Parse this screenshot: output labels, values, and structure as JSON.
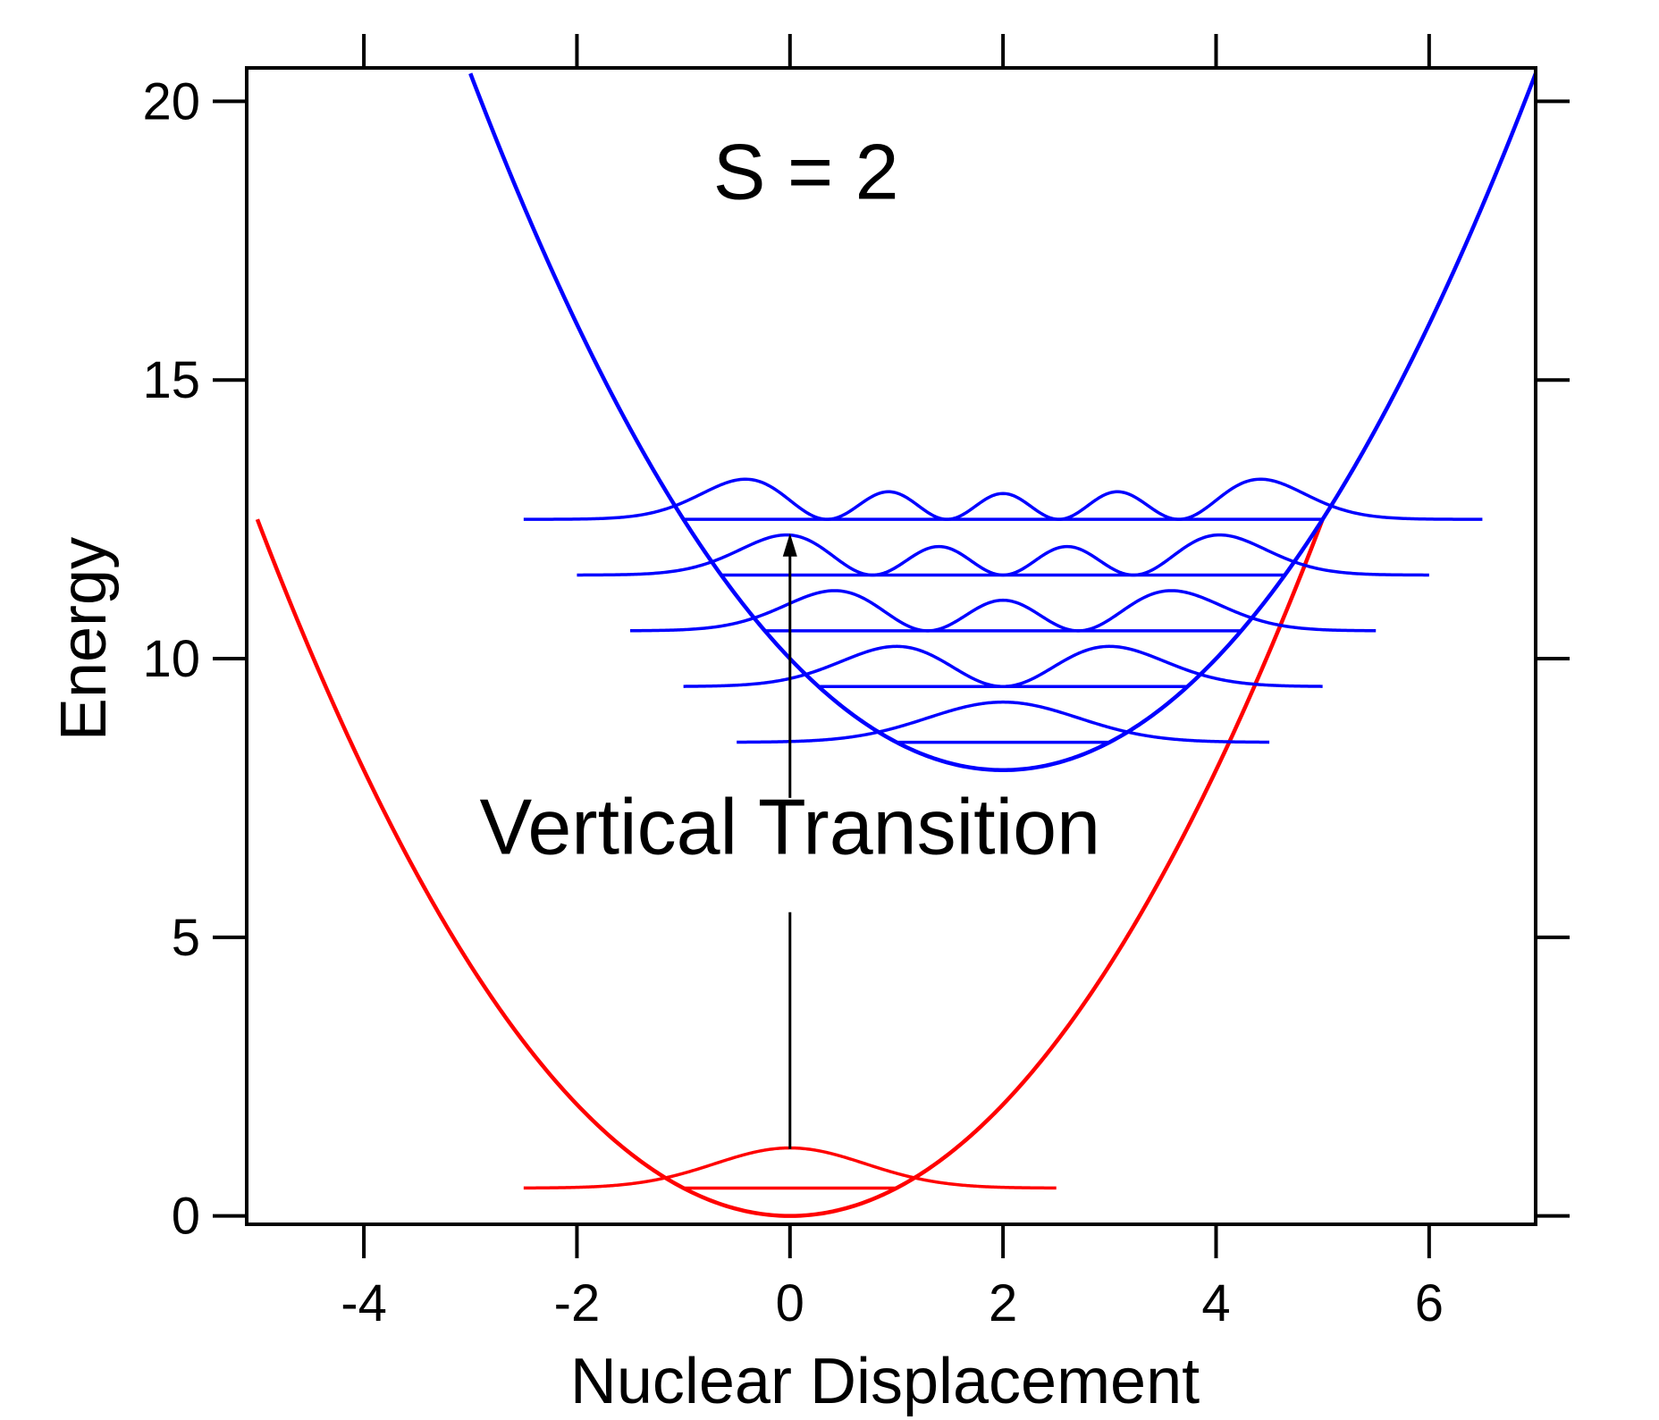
{
  "chart_data": {
    "type": "line",
    "title": "",
    "xlabel": "Nuclear Displacement",
    "ylabel": "Energy",
    "xlim": [
      -5.1,
      7.0
    ],
    "ylim": [
      -0.15,
      20.6
    ],
    "xticks": [
      -4,
      -2,
      0,
      2,
      4,
      6
    ],
    "xtick_labels": [
      "-4",
      "-2",
      "0",
      "2",
      "4",
      "6"
    ],
    "yticks": [
      0,
      5,
      10,
      15,
      20
    ],
    "ytick_labels": [
      "0",
      "5",
      "10",
      "15",
      "20"
    ],
    "grid": false,
    "legend": "none",
    "colors": {
      "ground": "#ff0000",
      "excited": "#0000ff",
      "axis": "#000000"
    },
    "ground_state": {
      "center": 0,
      "min_energy": 0,
      "curvature": 0.5,
      "x_range": [
        -5.0,
        5.0
      ],
      "levels": [
        {
          "v": 0,
          "energy": 0.5,
          "line_range": [
            -2.5,
            2.5
          ],
          "turning": [
            -1.0,
            1.0
          ]
        }
      ]
    },
    "excited_state": {
      "center": 2,
      "min_energy": 8,
      "curvature": 0.5,
      "x_range": [
        -3.0,
        7.0
      ],
      "levels": [
        {
          "v": 0,
          "energy": 8.5,
          "line_range": [
            -0.5,
            4.5
          ],
          "turning": [
            1.0,
            3.0
          ]
        },
        {
          "v": 1,
          "energy": 9.5,
          "line_range": [
            -1.0,
            5.0
          ],
          "turning": [
            0.27,
            3.73
          ]
        },
        {
          "v": 2,
          "energy": 10.5,
          "line_range": [
            -1.5,
            5.5
          ],
          "turning": [
            -0.24,
            4.24
          ]
        },
        {
          "v": 3,
          "energy": 11.5,
          "line_range": [
            -2.0,
            6.0
          ],
          "turning": [
            -0.65,
            4.65
          ]
        },
        {
          "v": 4,
          "energy": 12.5,
          "line_range": [
            -2.5,
            6.5
          ],
          "turning": [
            -1.0,
            5.0
          ]
        }
      ]
    },
    "annotations": [
      {
        "text": "S = 2",
        "x": 0.15,
        "y": 18.25
      },
      {
        "text": "Vertical Transition",
        "x": 0.0,
        "y": 6.5
      }
    ],
    "arrow": {
      "x": 0.0,
      "from_y": 1.2,
      "to_y": 12.25
    }
  }
}
